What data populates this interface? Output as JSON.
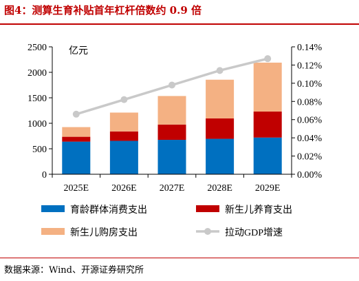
{
  "title": "图4：测算生育补贴首年杠杆倍数约 0.9 倍",
  "source": "数据来源：Wind、开源证券研究所",
  "unit_label": "亿元",
  "chart_data": {
    "type": "bar",
    "stacked": true,
    "categories": [
      "2025E",
      "2026E",
      "2027E",
      "2028E",
      "2029E"
    ],
    "series": [
      {
        "name": "育龄群体消费支出",
        "type": "bar",
        "axis": "left",
        "color": "#0070c0",
        "values": [
          640,
          655,
          675,
          695,
          720
        ]
      },
      {
        "name": "新生儿养育支出",
        "type": "bar",
        "axis": "left",
        "color": "#c00000",
        "values": [
          95,
          185,
          300,
          400,
          510
        ]
      },
      {
        "name": "新生儿购房支出",
        "type": "bar",
        "axis": "left",
        "color": "#f4b183",
        "values": [
          190,
          370,
          560,
          760,
          960
        ]
      },
      {
        "name": "拉动GDP增速",
        "type": "line",
        "axis": "right",
        "color": "#c9c9c9",
        "values": [
          0.00066,
          0.00082,
          0.00098,
          0.00114,
          0.00127
        ]
      }
    ],
    "y_left": {
      "min": 0,
      "max": 2500,
      "ticks": [
        "0",
        "500",
        "1000",
        "1500",
        "2000",
        "2500"
      ]
    },
    "y_right": {
      "min": 0,
      "max": 0.0014,
      "ticks": [
        "0.00%",
        "0.02%",
        "0.04%",
        "0.06%",
        "0.08%",
        "0.10%",
        "0.12%",
        "0.14%"
      ]
    },
    "grid": false,
    "legend_position": "bottom"
  }
}
